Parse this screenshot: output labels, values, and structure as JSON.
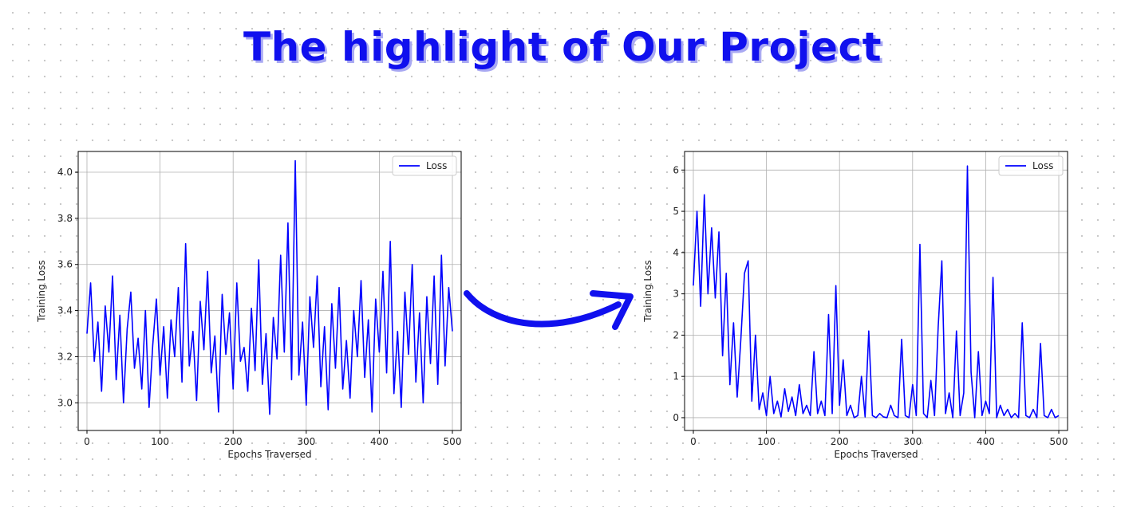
{
  "page": {
    "title": "The highlight of Our Project",
    "accent_color": "#1010ee",
    "arrow_icon": "curved-arrow-right-icon"
  },
  "chart_data": [
    {
      "type": "line",
      "xlabel": "Epochs Traversed",
      "ylabel": "Training Loss",
      "xlim": [
        -12,
        512
      ],
      "ylim": [
        2.88,
        4.09
      ],
      "xticks": [
        0,
        100,
        200,
        300,
        400,
        500
      ],
      "yticks": [
        3.0,
        3.2,
        3.4,
        3.6,
        3.8,
        4.0
      ],
      "ytick_labels": [
        "3.0",
        "3.2",
        "3.4",
        "3.6",
        "3.8",
        "4.0"
      ],
      "grid": true,
      "legend_position": "top-right",
      "series": [
        {
          "name": "Loss",
          "color": "#0000ff",
          "sample_every": 5,
          "values": [
            3.3,
            3.52,
            3.18,
            3.35,
            3.05,
            3.42,
            3.22,
            3.55,
            3.1,
            3.38,
            3.0,
            3.32,
            3.48,
            3.15,
            3.28,
            3.06,
            3.4,
            2.98,
            3.25,
            3.45,
            3.12,
            3.33,
            3.02,
            3.36,
            3.2,
            3.5,
            3.09,
            3.69,
            3.16,
            3.31,
            3.01,
            3.44,
            3.23,
            3.57,
            3.13,
            3.29,
            2.96,
            3.47,
            3.21,
            3.39,
            3.06,
            3.52,
            3.18,
            3.24,
            3.05,
            3.41,
            3.14,
            3.62,
            3.08,
            3.3,
            2.95,
            3.37,
            3.19,
            3.64,
            3.22,
            3.78,
            3.1,
            4.05,
            3.12,
            3.35,
            2.99,
            3.46,
            3.24,
            3.55,
            3.07,
            3.33,
            2.97,
            3.43,
            3.15,
            3.5,
            3.06,
            3.27,
            3.02,
            3.4,
            3.2,
            3.53,
            3.11,
            3.36,
            2.96,
            3.45,
            3.22,
            3.57,
            3.13,
            3.7,
            3.04,
            3.31,
            2.98,
            3.48,
            3.21,
            3.6,
            3.09,
            3.39,
            3.0,
            3.46,
            3.17,
            3.55,
            3.08,
            3.64,
            3.16,
            3.5,
            3.31
          ]
        }
      ]
    },
    {
      "type": "line",
      "xlabel": "Epochs Traversed",
      "ylabel": "Training Loss",
      "xlim": [
        -12,
        512
      ],
      "ylim": [
        -0.31,
        6.45
      ],
      "xticks": [
        0,
        100,
        200,
        300,
        400,
        500
      ],
      "yticks": [
        0,
        1,
        2,
        3,
        4,
        5,
        6
      ],
      "ytick_labels": [
        "0",
        "1",
        "2",
        "3",
        "4",
        "5",
        "6"
      ],
      "grid": true,
      "legend_position": "top-right",
      "series": [
        {
          "name": "Loss",
          "color": "#0000ff",
          "sample_every": 5,
          "values": [
            3.2,
            5.0,
            2.7,
            5.4,
            3.0,
            4.6,
            2.9,
            4.5,
            1.5,
            3.5,
            0.8,
            2.3,
            0.5,
            1.9,
            3.5,
            3.8,
            0.4,
            2.0,
            0.2,
            0.6,
            0.05,
            1.0,
            0.1,
            0.4,
            0.02,
            0.7,
            0.15,
            0.5,
            0.05,
            0.8,
            0.1,
            0.3,
            0.05,
            1.6,
            0.1,
            0.4,
            0.05,
            2.5,
            0.1,
            3.2,
            0.3,
            1.4,
            0.05,
            0.3,
            0.0,
            0.05,
            1.0,
            0.02,
            2.1,
            0.05,
            0.0,
            0.1,
            0.02,
            0.0,
            0.3,
            0.05,
            0.0,
            1.9,
            0.05,
            0.0,
            0.8,
            0.05,
            4.2,
            0.1,
            0.0,
            0.9,
            0.05,
            2.2,
            3.8,
            0.1,
            0.6,
            0.0,
            2.1,
            0.05,
            0.6,
            6.1,
            1.1,
            0.0,
            1.6,
            0.05,
            0.4,
            0.1,
            3.4,
            0.0,
            0.3,
            0.05,
            0.2,
            0.0,
            0.1,
            0.0,
            2.3,
            0.05,
            0.0,
            0.2,
            0.0,
            1.8,
            0.05,
            0.0,
            0.2,
            0.0,
            0.05
          ]
        }
      ]
    }
  ]
}
